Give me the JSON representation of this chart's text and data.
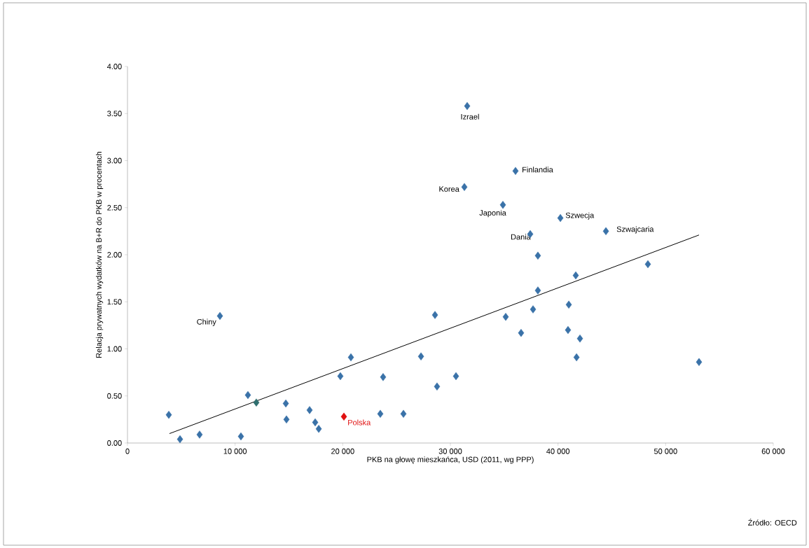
{
  "chart_data": {
    "type": "scatter",
    "xlabel": "PKB na głowę mieszkańca, USD (2011, wg PPP)",
    "ylabel": "Relacja prywatnych wydatków na B+R do PKB w procentach",
    "xlim": [
      0,
      60000
    ],
    "ylim": [
      0,
      4
    ],
    "xticks": [
      0,
      {
        "value": 10000,
        "label": "10 000"
      },
      {
        "value": 20000,
        "label": "20 000"
      },
      {
        "value": 30000,
        "label": "30 000"
      },
      {
        "value": 40000,
        "label": "40 000"
      },
      {
        "value": 50000,
        "label": "50 000"
      },
      {
        "value": 60000,
        "label": "60 000"
      }
    ],
    "yticks": [
      {
        "value": 0,
        "label": "0.00"
      },
      {
        "value": 0.5,
        "label": "0.50"
      },
      {
        "value": 1,
        "label": "1.00"
      },
      {
        "value": 1.5,
        "label": "1.50"
      },
      {
        "value": 2,
        "label": "2.00"
      },
      {
        "value": 2.5,
        "label": "2.50"
      },
      {
        "value": 3,
        "label": "3.00"
      },
      {
        "value": 3.5,
        "label": "3.50"
      },
      {
        "value": 4,
        "label": "4.00"
      }
    ],
    "marker": "diamond",
    "series": [
      {
        "color": "#3a72a8",
        "x": [
          3840,
          4880,
          6700,
          8590,
          10540,
          11190,
          11970,
          14710,
          14770,
          16920,
          17440,
          17770,
          20110,
          19780,
          20760,
          23490,
          23750,
          25640,
          27270,
          28570,
          28760,
          30520,
          31560,
          31300,
          36050,
          34880,
          40220,
          44450,
          37420,
          38130,
          48350,
          41650,
          38130,
          37680,
          35140,
          41000,
          36570,
          40930,
          42040,
          41720,
          53100
        ],
        "values": [
          0.3,
          0.04,
          0.09,
          1.35,
          0.07,
          0.51,
          0.43,
          0.42,
          0.25,
          0.35,
          0.22,
          0.15,
          0.28,
          0.71,
          0.91,
          0.31,
          0.7,
          0.31,
          0.92,
          1.36,
          0.6,
          0.71,
          3.58,
          2.72,
          2.89,
          2.53,
          2.39,
          2.25,
          2.22,
          1.99,
          1.9,
          1.78,
          1.62,
          1.42,
          1.34,
          1.47,
          1.17,
          1.2,
          1.11,
          0.91,
          0.86
        ],
        "colors": [
          "#3a72a8",
          "#3a72a8",
          "#3a72a8",
          "#3a72a8",
          "#3a72a8",
          "#3a72a8",
          "#2f6f6f",
          "#3a72a8",
          "#3a72a8",
          "#3a72a8",
          "#3a72a8",
          "#3a72a8",
          "#e01010",
          "#3a72a8",
          "#3a72a8",
          "#3a72a8",
          "#3a72a8",
          "#3a72a8",
          "#3a72a8",
          "#3a72a8",
          "#3a72a8",
          "#3a72a8",
          "#3a72a8",
          "#3a72a8",
          "#3a72a8",
          "#3a72a8",
          "#3a72a8",
          "#3a72a8",
          "#3a72a8",
          "#3a72a8",
          "#3a72a8",
          "#3a72a8",
          "#3a72a8",
          "#3a72a8",
          "#3a72a8",
          "#3a72a8",
          "#3a72a8",
          "#3a72a8",
          "#3a72a8",
          "#3a72a8",
          "#3a72a8"
        ]
      },
      {
        "type": "line",
        "marker": "none",
        "color": "#000000",
        "x": [
          3900,
          53100
        ],
        "values": [
          0.1,
          2.21
        ]
      }
    ],
    "annotations": [
      {
        "text": "Izrael",
        "x": 31560,
        "y": 3.58
      },
      {
        "text": "Finlandia",
        "x": 36050,
        "y": 2.89
      },
      {
        "text": "Korea",
        "x": 31300,
        "y": 2.72
      },
      {
        "text": "Japonia",
        "x": 34880,
        "y": 2.53
      },
      {
        "text": "Szwecja",
        "x": 40220,
        "y": 2.39
      },
      {
        "text": "Dania",
        "x": 37420,
        "y": 2.22
      },
      {
        "text": "Szwajcaria",
        "x": 44450,
        "y": 2.25
      },
      {
        "text": "Chiny",
        "x": 8590,
        "y": 1.35
      },
      {
        "text": "Polska",
        "x": 20110,
        "y": 0.28
      },
      "Źródło: OECD"
    ]
  }
}
